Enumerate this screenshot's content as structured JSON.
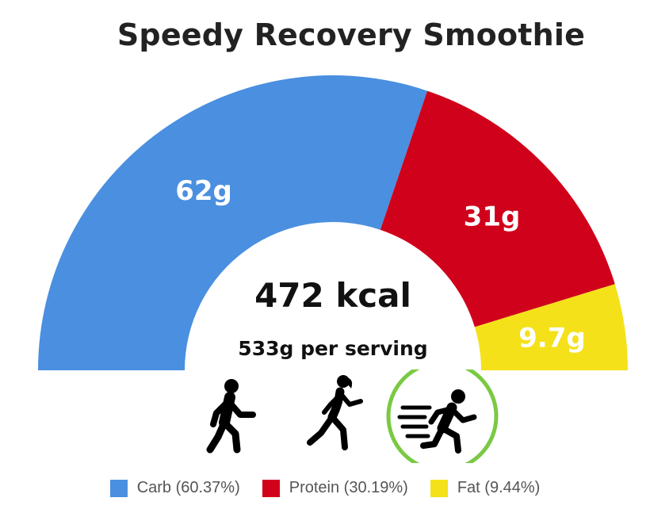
{
  "title": "Speedy Recovery Smoothie",
  "chart_data": {
    "type": "pie",
    "subtype": "half-donut",
    "title": "Speedy Recovery Smoothie",
    "center": {
      "calories": "472 kcal",
      "serving": "533g per serving"
    },
    "slices": [
      {
        "name": "Carb",
        "grams": 62,
        "label": "62g",
        "percent": 60.37,
        "color": "#4a8fe0"
      },
      {
        "name": "Protein",
        "grams": 31,
        "label": "31g",
        "percent": 30.19,
        "color": "#d0021b"
      },
      {
        "name": "Fat",
        "grams": 9.7,
        "label": "9.7g",
        "percent": 9.44,
        "color": "#f5e11a"
      }
    ]
  },
  "legend": [
    {
      "label": "Carb (60.37%)",
      "color": "#4a8fe0"
    },
    {
      "label": "Protein (30.19%)",
      "color": "#d0021b"
    },
    {
      "label": "Fat (9.44%)",
      "color": "#f5e11a"
    }
  ],
  "activities": [
    {
      "icon": "walking-person-icon",
      "selected": false
    },
    {
      "icon": "running-woman-icon",
      "selected": false
    },
    {
      "icon": "sprinting-person-icon",
      "selected": true
    }
  ],
  "colors": {
    "selected_ring": "#7ac943",
    "text": "#222222",
    "legend_text": "#555555"
  }
}
